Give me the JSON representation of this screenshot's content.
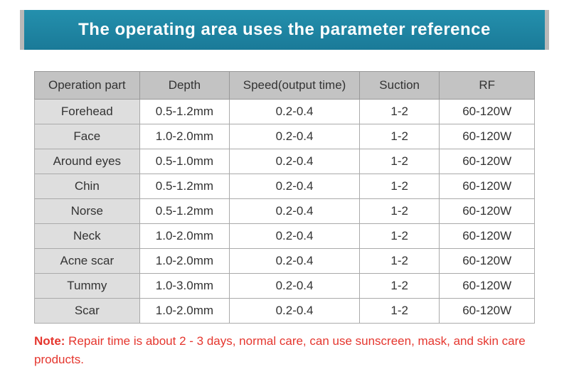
{
  "header": {
    "title": "The operating area uses the parameter reference",
    "bg_gradient_top": "#2490ad",
    "bg_gradient_bottom": "#1a7a98",
    "side_accent": "#b8b8b8",
    "text_color": "#ffffff",
    "fontsize": 24
  },
  "table": {
    "type": "table",
    "columns": [
      "Operation part",
      "Depth",
      "Speed(output time)",
      "Suction",
      "RF"
    ],
    "rows": [
      [
        "Forehead",
        "0.5-1.2mm",
        "0.2-0.4",
        "1-2",
        "60-120W"
      ],
      [
        "Face",
        "1.0-2.0mm",
        "0.2-0.4",
        "1-2",
        "60-120W"
      ],
      [
        "Around eyes",
        "0.5-1.0mm",
        "0.2-0.4",
        "1-2",
        "60-120W"
      ],
      [
        "Chin",
        "0.5-1.2mm",
        "0.2-0.4",
        "1-2",
        "60-120W"
      ],
      [
        "Norse",
        "0.5-1.2mm",
        "0.2-0.4",
        "1-2",
        "60-120W"
      ],
      [
        "Neck",
        "1.0-2.0mm",
        "0.2-0.4",
        "1-2",
        "60-120W"
      ],
      [
        "Acne scar",
        "1.0-2.0mm",
        "0.2-0.4",
        "1-2",
        "60-120W"
      ],
      [
        "Tummy",
        "1.0-3.0mm",
        "0.2-0.4",
        "1-2",
        "60-120W"
      ],
      [
        "Scar",
        "1.0-2.0mm",
        "0.2-0.4",
        "1-2",
        "60-120W"
      ]
    ],
    "header_bg": "#c3c3c3",
    "header_text_color": "#333333",
    "part_cell_bg": "#dedede",
    "cell_bg": "#ffffff",
    "border_color": "#aaaaaa",
    "fontsize": 17,
    "col_widths_pct": [
      21,
      18,
      26,
      16,
      19
    ]
  },
  "note": {
    "label": "Note:",
    "text": " Repair time is about 2 - 3 days, normal care, can use sunscreen, mask, and skin care products.",
    "color": "#e5362e",
    "fontsize": 17
  }
}
